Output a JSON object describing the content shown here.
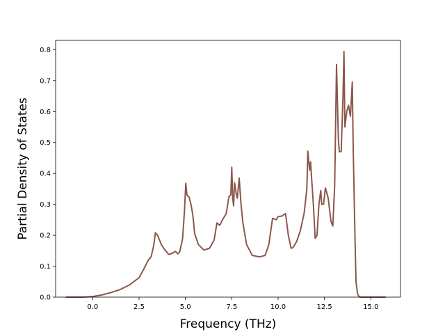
{
  "chart_data": {
    "type": "line",
    "title": "",
    "xlabel": "Frequency (THz)",
    "ylabel": "Partial Density of States",
    "xlim": [
      -2.0,
      16.6
    ],
    "ylim": [
      0.0,
      0.83
    ],
    "grid": false,
    "xticks": [
      0.0,
      2.5,
      5.0,
      7.5,
      10.0,
      12.5,
      15.0
    ],
    "xtick_labels": [
      "0.0",
      "2.5",
      "5.0",
      "7.5",
      "10.0",
      "12.5",
      "15.0"
    ],
    "yticks": [
      0.0,
      0.1,
      0.2,
      0.3,
      0.4,
      0.5,
      0.6,
      0.7,
      0.8
    ],
    "ytick_labels": [
      "0.0",
      "0.1",
      "0.2",
      "0.3",
      "0.4",
      "0.5",
      "0.6",
      "0.7",
      "0.8"
    ],
    "series": [
      {
        "color": "#8c564b",
        "x": [
          -1.45,
          -0.5,
          0.0,
          0.5,
          1.0,
          1.5,
          2.0,
          2.5,
          2.75,
          3.0,
          3.15,
          3.3,
          3.38,
          3.5,
          3.7,
          3.9,
          4.1,
          4.3,
          4.45,
          4.6,
          4.7,
          4.85,
          4.95,
          5.02,
          5.08,
          5.2,
          5.3,
          5.4,
          5.5,
          5.7,
          6.0,
          6.3,
          6.55,
          6.7,
          6.85,
          7.0,
          7.2,
          7.35,
          7.45,
          7.5,
          7.55,
          7.6,
          7.65,
          7.75,
          7.8,
          7.9,
          8.0,
          8.1,
          8.3,
          8.6,
          9.0,
          9.3,
          9.5,
          9.7,
          9.9,
          10.0,
          10.2,
          10.4,
          10.55,
          10.7,
          10.8,
          11.0,
          11.2,
          11.4,
          11.55,
          11.6,
          11.7,
          11.75,
          11.8,
          11.9,
          12.0,
          12.1,
          12.2,
          12.3,
          12.35,
          12.45,
          12.55,
          12.7,
          12.8,
          12.85,
          12.95,
          13.05,
          13.15,
          13.25,
          13.3,
          13.4,
          13.5,
          13.55,
          13.6,
          13.7,
          13.75,
          13.8,
          13.9,
          14.0,
          14.05,
          14.15,
          14.2,
          14.28,
          14.35,
          14.42,
          14.5,
          14.6,
          15.0,
          15.8
        ],
        "y": [
          0.0,
          0.0,
          0.002,
          0.007,
          0.015,
          0.025,
          0.04,
          0.063,
          0.09,
          0.12,
          0.13,
          0.17,
          0.208,
          0.2,
          0.17,
          0.152,
          0.138,
          0.142,
          0.148,
          0.14,
          0.148,
          0.19,
          0.28,
          0.368,
          0.33,
          0.323,
          0.3,
          0.265,
          0.205,
          0.17,
          0.152,
          0.158,
          0.185,
          0.24,
          0.232,
          0.25,
          0.27,
          0.325,
          0.33,
          0.42,
          0.32,
          0.295,
          0.37,
          0.33,
          0.32,
          0.385,
          0.3,
          0.24,
          0.17,
          0.135,
          0.13,
          0.135,
          0.17,
          0.255,
          0.25,
          0.26,
          0.262,
          0.27,
          0.2,
          0.158,
          0.16,
          0.18,
          0.215,
          0.27,
          0.35,
          0.472,
          0.41,
          0.437,
          0.39,
          0.3,
          0.19,
          0.2,
          0.3,
          0.345,
          0.3,
          0.3,
          0.353,
          0.32,
          0.27,
          0.245,
          0.23,
          0.36,
          0.752,
          0.51,
          0.47,
          0.47,
          0.65,
          0.794,
          0.55,
          0.6,
          0.61,
          0.62,
          0.585,
          0.695,
          0.48,
          0.18,
          0.05,
          0.012,
          0.003,
          0.0,
          0.0,
          0.0,
          0.0,
          0.0
        ]
      }
    ]
  }
}
